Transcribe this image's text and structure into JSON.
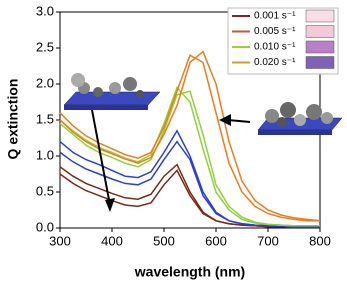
{
  "chart_data": {
    "type": "line",
    "ylabel": "Q extinction",
    "xlabel": "wavelength (nm)",
    "x": [
      300,
      325,
      350,
      375,
      400,
      425,
      450,
      475,
      500,
      525,
      550,
      575,
      600,
      625,
      650,
      675,
      700,
      725,
      750,
      775,
      800
    ],
    "xlim": [
      300,
      800
    ],
    "xticks": [
      300,
      400,
      500,
      600,
      700,
      800
    ],
    "ylim": [
      0,
      3
    ],
    "yticks": [
      {
        "value": 0,
        "label": "0.0"
      },
      0.5,
      {
        "value": 1,
        "label": "1.0"
      },
      1.5,
      {
        "value": 2,
        "label": "2.0"
      },
      2.5,
      {
        "value": 3,
        "label": "3.0"
      }
    ],
    "legend": [
      {
        "name": "0.001 s⁻¹",
        "color": "#8b1e1e",
        "swatch": "#f6dde6"
      },
      {
        "name": "0.005 s⁻¹",
        "color": "#c8553a",
        "swatch": "#f3c9d6"
      },
      {
        "name": "0.010 s⁻¹",
        "color": "#9ccc3c",
        "swatch": "#b97fc4"
      },
      {
        "name": "0.020 s⁻¹",
        "color": "#c9a227",
        "swatch": "#8061b8"
      }
    ],
    "series": [
      {
        "color": "#7a2a14",
        "values": [
          0.75,
          0.62,
          0.52,
          0.45,
          0.38,
          0.32,
          0.3,
          0.35,
          0.6,
          0.8,
          0.45,
          0.2,
          0.1,
          0.06,
          0.04,
          0.03,
          0.02,
          0.02,
          0.01,
          0.01,
          0.01
        ]
      },
      {
        "color": "#7a2a14",
        "values": [
          0.85,
          0.72,
          0.62,
          0.55,
          0.48,
          0.42,
          0.4,
          0.47,
          0.72,
          0.88,
          0.5,
          0.22,
          0.1,
          0.06,
          0.04,
          0.03,
          0.02,
          0.02,
          0.01,
          0.01,
          0.01
        ]
      },
      {
        "color": "#2b3fcf",
        "values": [
          1.05,
          0.92,
          0.82,
          0.75,
          0.68,
          0.62,
          0.6,
          0.68,
          0.95,
          1.2,
          0.95,
          0.45,
          0.2,
          0.1,
          0.06,
          0.04,
          0.03,
          0.02,
          0.02,
          0.02,
          0.02
        ]
      },
      {
        "color": "#2b3fcf",
        "values": [
          1.2,
          1.05,
          0.95,
          0.88,
          0.8,
          0.72,
          0.7,
          0.78,
          1.05,
          1.35,
          1.0,
          0.5,
          0.22,
          0.1,
          0.06,
          0.04,
          0.03,
          0.02,
          0.02,
          0.02,
          0.02
        ]
      },
      {
        "color": "#8fd13c",
        "values": [
          1.45,
          1.3,
          1.15,
          1.05,
          0.98,
          0.9,
          0.85,
          0.95,
          1.35,
          1.85,
          1.9,
          1.3,
          0.6,
          0.3,
          0.15,
          0.08,
          0.05,
          0.04,
          0.03,
          0.03,
          0.03
        ]
      },
      {
        "color": "#8fd13c",
        "values": [
          1.5,
          1.35,
          1.22,
          1.12,
          1.05,
          0.97,
          0.92,
          1.02,
          1.45,
          1.95,
          1.75,
          1.1,
          0.5,
          0.25,
          0.12,
          0.07,
          0.05,
          0.04,
          0.03,
          0.03,
          0.03
        ]
      },
      {
        "color": "#f07a1a",
        "values": [
          1.6,
          1.42,
          1.28,
          1.18,
          1.1,
          1.02,
          0.97,
          1.05,
          1.4,
          1.9,
          2.4,
          2.3,
          1.6,
          0.9,
          0.5,
          0.3,
          0.2,
          0.15,
          0.12,
          0.1,
          0.1
        ]
      },
      {
        "color": "#f07a1a",
        "values": [
          1.5,
          1.33,
          1.2,
          1.1,
          1.03,
          0.96,
          0.9,
          0.98,
          1.3,
          1.7,
          2.3,
          2.45,
          2.0,
          1.2,
          0.65,
          0.38,
          0.25,
          0.18,
          0.14,
          0.12,
          0.1
        ]
      }
    ]
  }
}
